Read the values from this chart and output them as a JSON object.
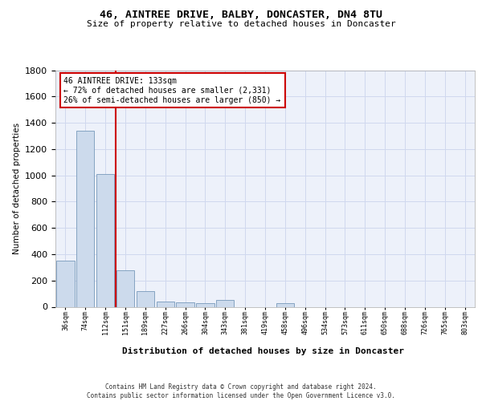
{
  "title1": "46, AINTREE DRIVE, BALBY, DONCASTER, DN4 8TU",
  "title2": "Size of property relative to detached houses in Doncaster",
  "xlabel": "Distribution of detached houses by size in Doncaster",
  "ylabel": "Number of detached properties",
  "categories": [
    "36sqm",
    "74sqm",
    "112sqm",
    "151sqm",
    "189sqm",
    "227sqm",
    "266sqm",
    "304sqm",
    "343sqm",
    "381sqm",
    "419sqm",
    "458sqm",
    "496sqm",
    "534sqm",
    "573sqm",
    "611sqm",
    "650sqm",
    "688sqm",
    "726sqm",
    "765sqm",
    "803sqm"
  ],
  "values": [
    350,
    1340,
    1010,
    280,
    120,
    38,
    35,
    25,
    50,
    0,
    0,
    30,
    0,
    0,
    0,
    0,
    0,
    0,
    0,
    0,
    0
  ],
  "bar_color": "#ccdaec",
  "bar_edge_color": "#7799bb",
  "vline_color": "#cc0000",
  "vline_pos": 2.5,
  "annotation_line1": "46 AINTREE DRIVE: 133sqm",
  "annotation_line2": "← 72% of detached houses are smaller (2,331)",
  "annotation_line3": "26% of semi-detached houses are larger (850) →",
  "ylim": [
    0,
    1800
  ],
  "yticks": [
    0,
    200,
    400,
    600,
    800,
    1000,
    1200,
    1400,
    1600,
    1800
  ],
  "grid_color": "#d0d8ee",
  "bg_color": "#edf1fa",
  "footer1": "Contains HM Land Registry data © Crown copyright and database right 2024.",
  "footer2": "Contains public sector information licensed under the Open Government Licence v3.0."
}
